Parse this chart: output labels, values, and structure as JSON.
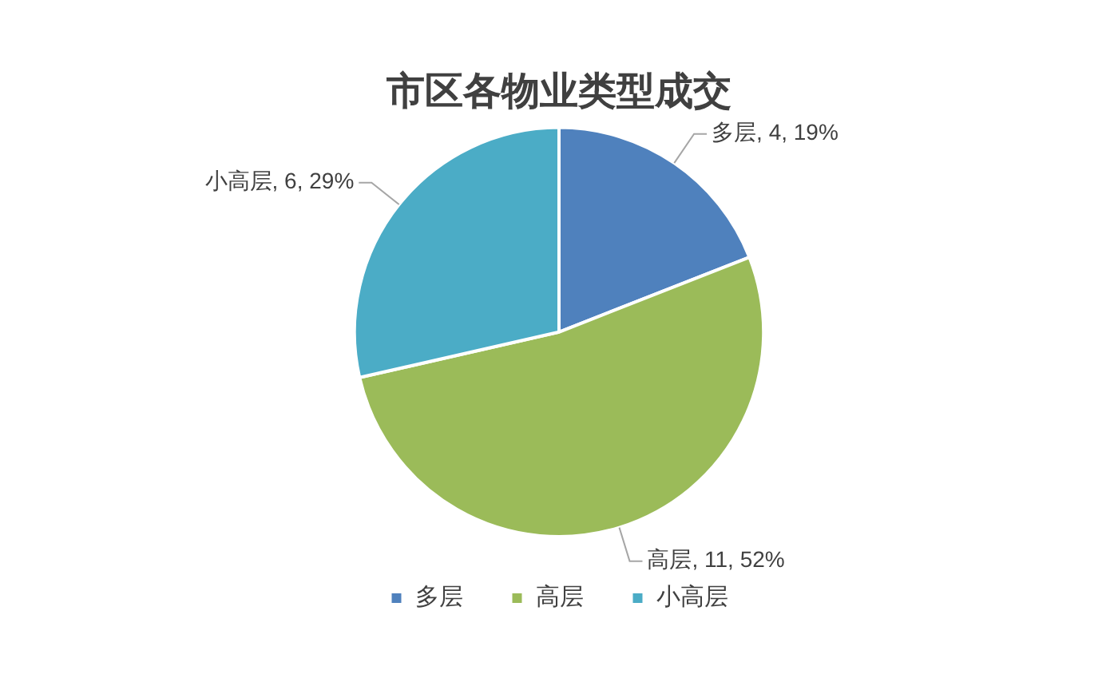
{
  "chart_data": {
    "type": "pie",
    "title": "市区各物业类型成交",
    "categories": [
      "多层",
      "高层",
      "小高层"
    ],
    "values": [
      4,
      11,
      6
    ],
    "colors": [
      "#4f81bd",
      "#9bbb59",
      "#4bacc6"
    ],
    "value_labels": [
      "多层, 4, 19%",
      "高层, 11, 52%",
      "小高层, 6, 29%"
    ],
    "legend": "bottom"
  }
}
